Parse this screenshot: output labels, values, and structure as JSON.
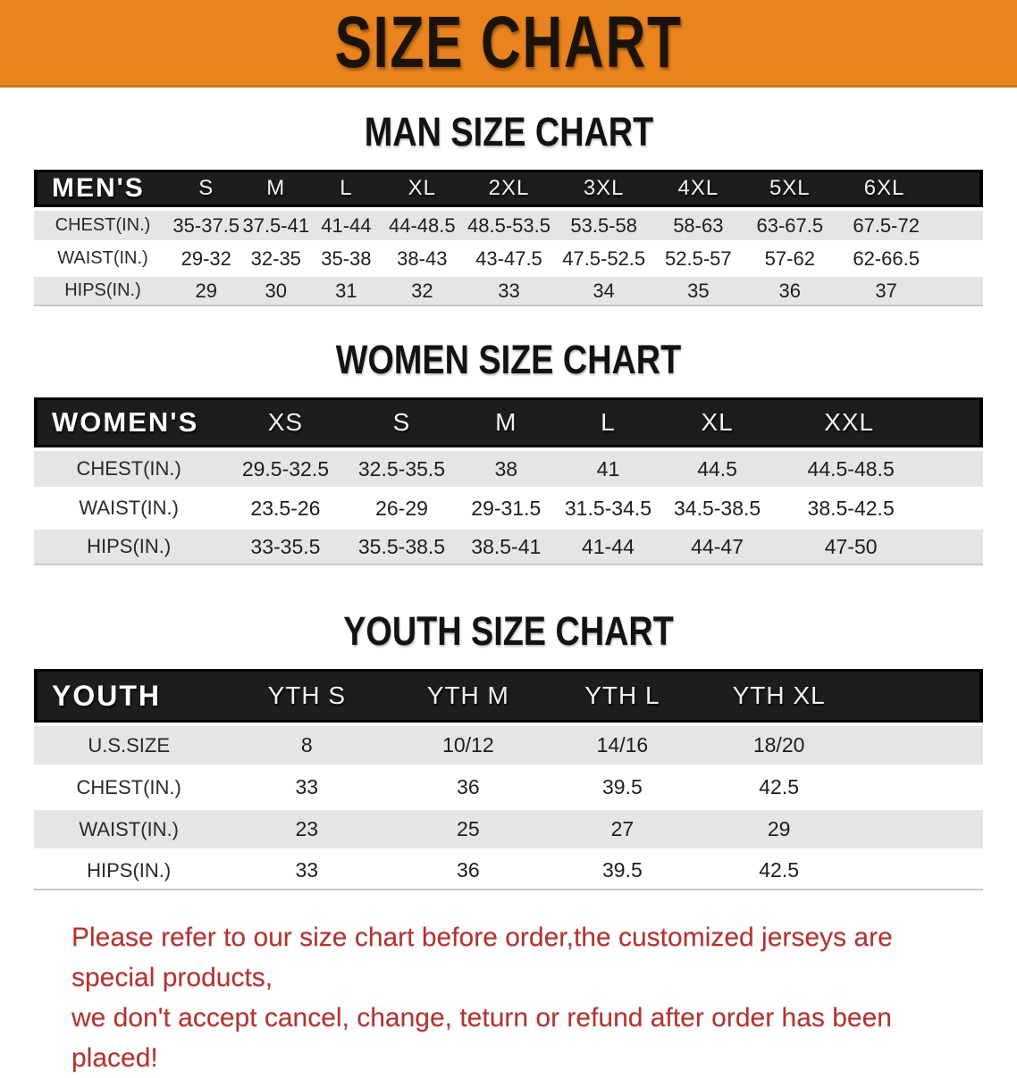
{
  "banner": {
    "title": "SIZE CHART",
    "background_color": "#E8831D",
    "text_color": "#1B130A"
  },
  "sections": [
    {
      "heading": "MAN SIZE CHART",
      "table": {
        "header_label": "MEN'S",
        "columns": [
          "S",
          "M",
          "L",
          "XL",
          "2XL",
          "3XL",
          "4XL",
          "5XL",
          "6XL"
        ],
        "rows": [
          {
            "label": "CHEST(IN.)",
            "values": [
              "35-37.5",
              "37.5-41",
              "41-44",
              "44-48.5",
              "48.5-53.5",
              "53.5-58",
              "58-63",
              "63-67.5",
              "67.5-72"
            ]
          },
          {
            "label": "WAIST(IN.)",
            "values": [
              "29-32",
              "32-35",
              "35-38",
              "38-43",
              "43-47.5",
              "47.5-52.5",
              "52.5-57",
              "57-62",
              "62-66.5"
            ]
          },
          {
            "label": "HIPS(IN.)",
            "values": [
              "29",
              "30",
              "31",
              "32",
              "33",
              "34",
              "35",
              "36",
              "37"
            ]
          }
        ]
      }
    },
    {
      "heading": "WOMEN SIZE CHART",
      "table": {
        "header_label": "WOMEN'S",
        "columns": [
          "XS",
          "S",
          "M",
          "L",
          "XL",
          "XXL"
        ],
        "rows": [
          {
            "label": "CHEST(IN.)",
            "values": [
              "29.5-32.5",
              "32.5-35.5",
              "38",
              "41",
              "44.5",
              "44.5-48.5"
            ]
          },
          {
            "label": "WAIST(IN.)",
            "values": [
              "23.5-26",
              "26-29",
              "29-31.5",
              "31.5-34.5",
              "34.5-38.5",
              "38.5-42.5"
            ]
          },
          {
            "label": "HIPS(IN.)",
            "values": [
              "33-35.5",
              "35.5-38.5",
              "38.5-41",
              "41-44",
              "44-47",
              "47-50"
            ]
          }
        ]
      }
    },
    {
      "heading": "YOUTH SIZE CHART",
      "table": {
        "header_label": "YOUTH",
        "columns": [
          "YTH S",
          "YTH M",
          "YTH L",
          "YTH XL"
        ],
        "rows": [
          {
            "label": "U.S.SIZE",
            "values": [
              "8",
              "10/12",
              "14/16",
              "18/20"
            ]
          },
          {
            "label": "CHEST(IN.)",
            "values": [
              "33",
              "36",
              "39.5",
              "42.5"
            ]
          },
          {
            "label": "WAIST(IN.)",
            "values": [
              "23",
              "25",
              "27",
              "29"
            ]
          },
          {
            "label": "HIPS(IN.)",
            "values": [
              "33",
              "36",
              "39.5",
              "42.5"
            ]
          }
        ]
      }
    }
  ],
  "disclaimer": {
    "line1": "Please refer to our size chart before order,the customized jerseys are special products,",
    "line2": "we don't accept cancel, change, teturn or refund after order has been placed!",
    "text_color": "#B13430"
  },
  "colors": {
    "table_header_bar": "#1E1D1C",
    "row_stripe_gray": "#E4E5E7",
    "row_stripe_white": "#FFFFFF"
  }
}
